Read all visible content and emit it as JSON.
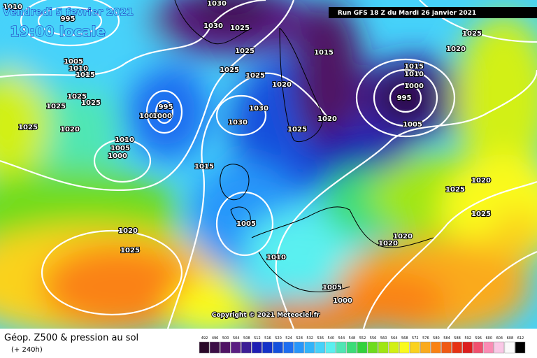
{
  "header": {
    "date": "Vendredi 5 fevrier 2021",
    "time": "19:00 locale",
    "run": "Run GFS 18 Z du Mardi 26 janvier 2021"
  },
  "copyright": "Copyright © 2021 Meteociel.fr",
  "legend": {
    "title": "Géop. Z500 & pression au sol",
    "subtitle": "(+ 240h)",
    "values": [
      492,
      496,
      500,
      504,
      508,
      512,
      516,
      520,
      524,
      528,
      532,
      536,
      540,
      544,
      548,
      552,
      556,
      560,
      564,
      568,
      572,
      576,
      580,
      584,
      588,
      592,
      596,
      600,
      604,
      608,
      612
    ],
    "colors": [
      "#2a0a2a",
      "#3c0f46",
      "#501464",
      "#5a1e82",
      "#3c1e96",
      "#1e1eb4",
      "#1432c8",
      "#1450dc",
      "#1e6ef0",
      "#2896fa",
      "#32b4fa",
      "#46d2fa",
      "#5af0f0",
      "#50e6b4",
      "#3cdc78",
      "#32d23c",
      "#6edc1e",
      "#a0e614",
      "#d2f014",
      "#fafa1e",
      "#fad21e",
      "#faaa1e",
      "#fa8214",
      "#f05a14",
      "#e63214",
      "#dc1e1e",
      "#f0506e",
      "#fa8cb4",
      "#fac8e6",
      "#fafafa",
      "#000000"
    ]
  },
  "isobar_labels": [
    1010,
    995,
    1030,
    1030,
    1025,
    1025,
    1025,
    1025,
    1020,
    1015,
    1025,
    1020,
    1005,
    1010,
    1015,
    1025,
    1025,
    1025,
    1025,
    1020,
    995,
    1005,
    1000,
    1030,
    1030,
    1025,
    1020,
    1015,
    1010,
    1000,
    995,
    1005,
    1010,
    1005,
    1000,
    1015,
    1025,
    1020,
    1025,
    1005,
    1020,
    1025,
    1020,
    1020,
    1010,
    1005,
    1000
  ]
}
